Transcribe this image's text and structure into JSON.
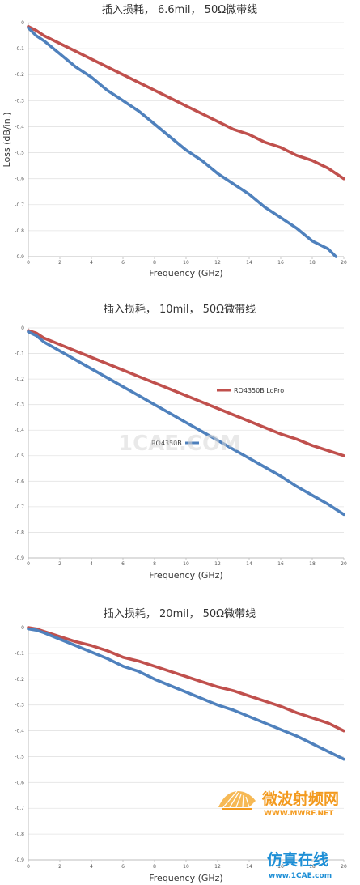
{
  "chart_data": [
    {
      "type": "line",
      "title": "插入损耗， 6.6mil， 50Ω微带线",
      "xlabel": "Frequency (GHz)",
      "ylabel": "Loss (dB/in.)",
      "xlim": [
        0,
        20
      ],
      "ylim": [
        -0.9,
        0
      ],
      "xticks": [
        "0",
        "2",
        "4",
        "6",
        "8",
        "10",
        "12",
        "14",
        "16",
        "18",
        "20"
      ],
      "yticks": [
        "0",
        "-0.1",
        "-0.2",
        "-0.3",
        "-0.4",
        "-0.5",
        "-0.6",
        "-0.7",
        "-0.8",
        "-0.9"
      ],
      "grid": true,
      "series": [
        {
          "color": "#c0504d",
          "x": [
            0,
            0.5,
            1,
            2,
            3,
            4,
            5,
            6,
            7,
            8,
            9,
            10,
            11,
            12,
            13,
            14,
            15,
            16,
            17,
            18,
            19,
            19.5,
            20
          ],
          "y": [
            -0.015,
            -0.03,
            -0.05,
            -0.08,
            -0.11,
            -0.14,
            -0.17,
            -0.2,
            -0.23,
            -0.26,
            -0.29,
            -0.32,
            -0.35,
            -0.38,
            -0.41,
            -0.43,
            -0.46,
            -0.48,
            -0.51,
            -0.53,
            -0.56,
            -0.58,
            -0.6
          ]
        },
        {
          "color": "#4f81bd",
          "x": [
            0,
            0.5,
            1,
            2,
            3,
            4,
            5,
            6,
            7,
            8,
            9,
            10,
            11,
            12,
            13,
            14,
            15,
            16,
            17,
            18,
            19,
            19.5
          ],
          "y": [
            -0.02,
            -0.05,
            -0.07,
            -0.12,
            -0.17,
            -0.21,
            -0.26,
            -0.3,
            -0.34,
            -0.39,
            -0.44,
            -0.49,
            -0.53,
            -0.58,
            -0.62,
            -0.66,
            -0.71,
            -0.75,
            -0.79,
            -0.84,
            -0.87,
            -0.9
          ]
        }
      ]
    },
    {
      "type": "line",
      "title": "插入损耗， 10mil， 50Ω微带线",
      "xlabel": "Frequency (GHz)",
      "ylabel": "",
      "xlim": [
        0,
        20
      ],
      "ylim": [
        -0.9,
        0
      ],
      "xticks": [
        "0",
        "2",
        "4",
        "6",
        "8",
        "10",
        "12",
        "14",
        "16",
        "18",
        "20"
      ],
      "yticks": [
        "0",
        "-0.1",
        "-0.2",
        "-0.3",
        "-0.4",
        "-0.5",
        "-0.6",
        "-0.7",
        "-0.8",
        "-0.9"
      ],
      "grid": true,
      "series": [
        {
          "name": "RO4350B LoPro",
          "color": "#c0504d",
          "x": [
            0,
            0.5,
            1,
            2,
            3,
            4,
            5,
            6,
            7,
            8,
            9,
            10,
            11,
            12,
            13,
            14,
            15,
            16,
            17,
            18,
            19,
            20
          ],
          "y": [
            -0.01,
            -0.02,
            -0.04,
            -0.065,
            -0.09,
            -0.115,
            -0.14,
            -0.165,
            -0.19,
            -0.215,
            -0.24,
            -0.265,
            -0.29,
            -0.315,
            -0.34,
            -0.365,
            -0.39,
            -0.415,
            -0.435,
            -0.46,
            -0.48,
            -0.5
          ]
        },
        {
          "name": "RO4350B",
          "color": "#4f81bd",
          "x": [
            0,
            0.5,
            1,
            2,
            3,
            4,
            5,
            6,
            7,
            8,
            9,
            10,
            11,
            12,
            13,
            14,
            15,
            16,
            17,
            18,
            19,
            20
          ],
          "y": [
            -0.015,
            -0.03,
            -0.055,
            -0.09,
            -0.125,
            -0.16,
            -0.195,
            -0.23,
            -0.265,
            -0.3,
            -0.335,
            -0.37,
            -0.405,
            -0.44,
            -0.475,
            -0.51,
            -0.545,
            -0.58,
            -0.62,
            -0.655,
            -0.69,
            -0.73
          ]
        }
      ],
      "legend": "inline"
    },
    {
      "type": "line",
      "title": "插入损耗， 20mil， 50Ω微带线",
      "xlabel": "Frequency (GHz)",
      "ylabel": "",
      "xlim": [
        0,
        20
      ],
      "ylim": [
        -0.9,
        0
      ],
      "xticks": [
        "0",
        "2",
        "4",
        "6",
        "8",
        "10",
        "12",
        "14",
        "16",
        "18",
        "20"
      ],
      "yticks": [
        "0",
        "-0.1",
        "-0.2",
        "-0.3",
        "-0.4",
        "-0.5",
        "-0.6",
        "-0.7",
        "-0.8",
        "-0.9"
      ],
      "grid": true,
      "series": [
        {
          "color": "#c0504d",
          "x": [
            0,
            0.5,
            1,
            2,
            3,
            4,
            5,
            6,
            7,
            8,
            9,
            10,
            11,
            12,
            13,
            14,
            15,
            16,
            17,
            18,
            19,
            20
          ],
          "y": [
            0,
            -0.005,
            -0.015,
            -0.035,
            -0.055,
            -0.07,
            -0.09,
            -0.115,
            -0.13,
            -0.15,
            -0.17,
            -0.19,
            -0.21,
            -0.23,
            -0.245,
            -0.265,
            -0.285,
            -0.305,
            -0.33,
            -0.35,
            -0.37,
            -0.4
          ]
        },
        {
          "color": "#4f81bd",
          "x": [
            0,
            0.5,
            1,
            2,
            3,
            4,
            5,
            6,
            7,
            8,
            9,
            10,
            11,
            12,
            13,
            14,
            15,
            16,
            17,
            18,
            19,
            20
          ],
          "y": [
            -0.005,
            -0.01,
            -0.02,
            -0.045,
            -0.07,
            -0.095,
            -0.12,
            -0.15,
            -0.17,
            -0.2,
            -0.225,
            -0.25,
            -0.275,
            -0.3,
            -0.32,
            -0.345,
            -0.37,
            -0.395,
            -0.42,
            -0.45,
            -0.48,
            -0.51
          ]
        }
      ]
    }
  ],
  "watermarks": {
    "center_text": "1CAE.COM",
    "brand_cn": "微波射频网",
    "brand_url": "WWW.MWRF.NET",
    "site_cn": "仿真在线",
    "site_url": "www.1CAE.com",
    "brand_color": "#f39a1e",
    "site_color": "#1e8fd6"
  }
}
